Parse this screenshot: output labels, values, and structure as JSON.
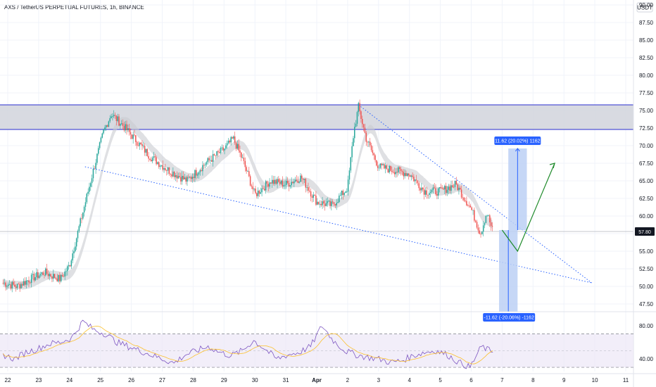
{
  "header": {
    "title": "AXS / TetherUS PERPETUAL FUTURES, 1h, BINANCE",
    "currency": "USDT"
  },
  "chart_data": {
    "type": "candlestick",
    "x_ticks": [
      "22",
      "23",
      "24",
      "25",
      "26",
      "27",
      "28",
      "29",
      "30",
      "31",
      "Apr",
      "2",
      "3",
      "4",
      "5",
      "6",
      "7",
      "8",
      "9",
      "10",
      "11"
    ],
    "ylim": [
      46.5,
      90.7
    ],
    "y_ticks": [
      90.0,
      87.5,
      85.0,
      82.5,
      80.0,
      77.5,
      75.0,
      72.5,
      70.0,
      67.5,
      65.0,
      62.5,
      60.0,
      57.5,
      55.0,
      52.5,
      50.0,
      47.5
    ],
    "last_price": {
      "label": "57.80",
      "value": 57.8
    },
    "resistance_zone": {
      "from": 72.3,
      "to": 75.8
    },
    "price_path": [
      {
        "day": 21.85,
        "price": 50.5
      },
      {
        "day": 22.3,
        "price": 50.0
      },
      {
        "day": 22.7,
        "price": 51.0
      },
      {
        "day": 23.2,
        "price": 52.0
      },
      {
        "day": 23.7,
        "price": 51.0
      },
      {
        "day": 24.0,
        "price": 53.0
      },
      {
        "day": 24.4,
        "price": 60.0
      },
      {
        "day": 24.8,
        "price": 67.0
      },
      {
        "day": 25.1,
        "price": 72.0
      },
      {
        "day": 25.35,
        "price": 74.5
      },
      {
        "day": 25.7,
        "price": 73.0
      },
      {
        "day": 26.1,
        "price": 71.0
      },
      {
        "day": 26.6,
        "price": 68.5
      },
      {
        "day": 27.2,
        "price": 66.5
      },
      {
        "day": 27.8,
        "price": 65.0
      },
      {
        "day": 28.4,
        "price": 67.5
      },
      {
        "day": 29.0,
        "price": 69.5
      },
      {
        "day": 29.3,
        "price": 71.0
      },
      {
        "day": 29.6,
        "price": 68.0
      },
      {
        "day": 30.0,
        "price": 63.0
      },
      {
        "day": 30.5,
        "price": 65.0
      },
      {
        "day": 31.0,
        "price": 64.5
      },
      {
        "day": 31.5,
        "price": 65.5
      },
      {
        "day": 32.0,
        "price": 62.0
      },
      {
        "day": 32.5,
        "price": 61.5
      },
      {
        "day": 33.0,
        "price": 64.0
      },
      {
        "day": 33.2,
        "price": 72.0
      },
      {
        "day": 33.35,
        "price": 75.5
      },
      {
        "day": 33.6,
        "price": 71.0
      },
      {
        "day": 34.0,
        "price": 67.0
      },
      {
        "day": 34.5,
        "price": 66.5
      },
      {
        "day": 35.0,
        "price": 66.0
      },
      {
        "day": 35.5,
        "price": 63.5
      },
      {
        "day": 36.0,
        "price": 63.5
      },
      {
        "day": 36.5,
        "price": 64.5
      },
      {
        "day": 37.0,
        "price": 61.0
      },
      {
        "day": 37.3,
        "price": 57.5
      },
      {
        "day": 37.5,
        "price": 60.5
      },
      {
        "day": 37.7,
        "price": 57.8
      }
    ],
    "drawings": {
      "upper_trendline": [
        {
          "day": 33.35,
          "price": 75.8
        },
        {
          "day": 40.9,
          "price": 50.5
        }
      ],
      "lower_trendline": [
        {
          "day": 24.5,
          "price": 67.0
        },
        {
          "day": 40.9,
          "price": 50.5
        }
      ],
      "projection_path": [
        {
          "day": 38.0,
          "price": 58.0
        },
        {
          "day": 38.5,
          "price": 55.0
        },
        {
          "day": 39.7,
          "price": 67.5
        }
      ],
      "long_box": {
        "from_day": 38.2,
        "to_day": 38.8,
        "from": 58.0,
        "to": 69.6,
        "label": "11.62 (20.02%) 1162"
      },
      "short_box": {
        "from_day": 37.9,
        "to_day": 38.5,
        "from": 58.0,
        "to": 46.4,
        "label": "-11.62 (-20.06%) -1162"
      }
    },
    "rsi": {
      "ylim": [
        25,
        95
      ],
      "y_ticks": [
        80.0,
        40.0
      ],
      "band": [
        30,
        70
      ],
      "mid": 50,
      "values": [
        45,
        40,
        48,
        52,
        58,
        60,
        65,
        85,
        75,
        70,
        60,
        55,
        50,
        45,
        40,
        35,
        45,
        50,
        55,
        48,
        44,
        50,
        62,
        52,
        40,
        45,
        48,
        55,
        80,
        62,
        50,
        45,
        42,
        40,
        36,
        38,
        44,
        48,
        50,
        45,
        36,
        30,
        55,
        48
      ]
    },
    "colors": {
      "up": "#26a69a",
      "down": "#ef5350",
      "zone": "#d1d4dc",
      "zone_line": "#2a2ecf",
      "trend": "#2962ff",
      "projection": "#1e8a2a",
      "box_fill": "#bcd0f5",
      "box_tag": "#2962ff",
      "rsi_line": "#7e57c2",
      "rsi_ma": "#fbc02d",
      "rsi_band": "#ede7f6",
      "last_price_tag": "#131722"
    }
  }
}
